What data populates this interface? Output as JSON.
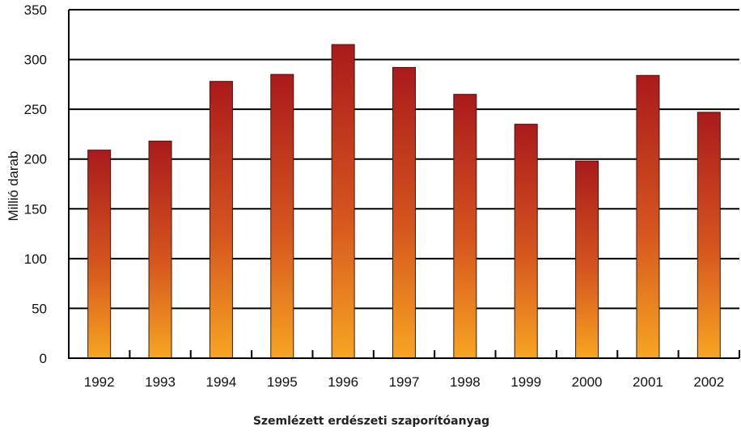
{
  "chart_data": {
    "type": "bar",
    "title": "Szemlézett erdészeti szaporítóanyag",
    "xlabel": "",
    "ylabel": "Millió darab",
    "categories": [
      "1992",
      "1993",
      "1994",
      "1995",
      "1996",
      "1997",
      "1998",
      "1999",
      "2000",
      "2001",
      "2002"
    ],
    "values": [
      209,
      218,
      278,
      285,
      315,
      292,
      265,
      235,
      198,
      284,
      247
    ],
    "ylim": [
      0,
      350
    ],
    "yticks": [
      "0",
      "50",
      "100",
      "150",
      "200",
      "250",
      "300",
      "350"
    ],
    "grid": true,
    "legend": "none",
    "colors": {
      "bar_top": "#aa1a1c",
      "bar_bottom": "#f7a522",
      "grid": "#000000"
    }
  }
}
